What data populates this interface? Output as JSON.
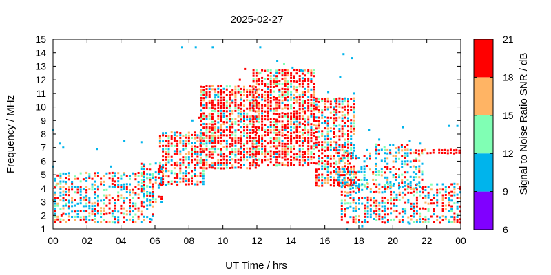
{
  "chart_data": {
    "type": "scatter",
    "title": "2025-02-27",
    "xlabel": "UT Time / hrs",
    "ylabel": "Frequency / MHz",
    "xlim": [
      0,
      24
    ],
    "ylim": [
      1,
      15
    ],
    "x_ticks": [
      "00",
      "02",
      "04",
      "06",
      "08",
      "10",
      "12",
      "14",
      "16",
      "18",
      "20",
      "22",
      "00"
    ],
    "y_ticks": [
      "1",
      "2",
      "3",
      "4",
      "5",
      "6",
      "7",
      "8",
      "9",
      "10",
      "11",
      "12",
      "13",
      "14",
      "15"
    ],
    "grid": false,
    "colorbar": {
      "label": "Signal to Noise Ratio SNR / dB",
      "range": [
        6,
        21
      ],
      "ticks": [
        "6",
        "9",
        "12",
        "15",
        "18",
        "21"
      ],
      "bands": [
        {
          "min": 6,
          "max": 9,
          "color": "#8000ff"
        },
        {
          "min": 9,
          "max": 12,
          "color": "#00b4ec"
        },
        {
          "min": 12,
          "max": 15,
          "color": "#80ffb4"
        },
        {
          "min": 15,
          "max": 18,
          "color": "#ffb464"
        },
        {
          "min": 18,
          "max": 21,
          "color": "#ff0000"
        }
      ]
    },
    "points": [
      [
        0.0,
        8.3,
        10
      ],
      [
        0.0,
        5.6,
        10
      ],
      [
        0.0,
        3.1,
        16
      ],
      [
        0.1,
        2.5,
        10
      ],
      [
        0.4,
        7.3,
        10
      ],
      [
        0.6,
        7.0,
        10
      ],
      [
        0.2,
        4.2,
        13
      ],
      [
        0.5,
        2.0,
        19
      ],
      [
        2.6,
        6.9,
        10
      ],
      [
        3.4,
        5.6,
        10
      ],
      [
        4.2,
        7.5,
        10
      ],
      [
        4.2,
        5.0,
        10
      ],
      [
        5.2,
        7.4,
        10
      ],
      [
        5.8,
        1.7,
        10
      ],
      [
        7.6,
        14.4,
        10
      ],
      [
        8.4,
        14.4,
        10
      ],
      [
        9.4,
        14.4,
        10
      ],
      [
        12.2,
        14.4,
        10
      ],
      [
        17.1,
        13.9,
        10
      ],
      [
        17.6,
        13.6,
        10
      ],
      [
        17.7,
        11.0,
        10
      ],
      [
        16.9,
        12.2,
        10
      ],
      [
        18.6,
        8.3,
        10
      ],
      [
        19.2,
        7.6,
        10
      ],
      [
        20.6,
        8.5,
        10
      ],
      [
        23.3,
        8.6,
        10
      ],
      [
        23.8,
        8.6,
        10
      ],
      [
        21.0,
        7.5,
        10
      ],
      [
        21.6,
        7.3,
        10
      ],
      [
        21.0,
        1.4,
        10
      ],
      [
        18.2,
        1.2,
        10
      ],
      [
        17.3,
        1.0,
        10
      ],
      [
        11.3,
        12.8,
        19
      ],
      [
        11.0,
        12.0,
        19
      ],
      [
        12.2,
        12.5,
        13
      ],
      [
        13.2,
        13.4,
        10
      ],
      [
        13.6,
        13.2,
        13
      ],
      [
        14.1,
        12.9,
        10
      ],
      [
        14.6,
        12.7,
        10
      ],
      [
        15.2,
        11.9,
        19
      ],
      [
        16.2,
        11.1,
        10
      ],
      [
        16.6,
        10.4,
        10
      ],
      [
        9.0,
        10.7,
        10
      ],
      [
        9.6,
        10.9,
        10
      ],
      [
        8.6,
        9.2,
        19
      ],
      [
        8.2,
        9.0,
        10
      ]
    ],
    "regions": [
      {
        "t0": 0.1,
        "t1": 6.0,
        "f0": 1.5,
        "f1": 5.2,
        "hot": 0.35,
        "dens": 0.55
      },
      {
        "t0": 5.2,
        "t1": 6.5,
        "f0": 3.0,
        "f1": 6.0,
        "hot": 0.3,
        "dens": 0.5
      },
      {
        "t0": 6.3,
        "t1": 9.0,
        "f0": 4.3,
        "f1": 8.3,
        "hot": 0.55,
        "dens": 0.75
      },
      {
        "t0": 8.7,
        "t1": 12.0,
        "f0": 5.5,
        "f1": 11.5,
        "hot": 0.6,
        "dens": 0.8
      },
      {
        "t0": 11.8,
        "t1": 15.5,
        "f0": 5.7,
        "f1": 12.8,
        "hot": 0.65,
        "dens": 0.8
      },
      {
        "t0": 15.5,
        "t1": 17.8,
        "f0": 4.2,
        "f1": 10.7,
        "hot": 0.55,
        "dens": 0.75
      },
      {
        "t0": 16.8,
        "t1": 21.8,
        "f0": 4.0,
        "f1": 7.0,
        "hot": 0.2,
        "dens": 0.45
      },
      {
        "t0": 17.0,
        "t1": 24.0,
        "f0": 1.5,
        "f1": 4.5,
        "hot": 0.4,
        "dens": 0.6
      },
      {
        "t0": 21.2,
        "t1": 24.0,
        "f0": 6.6,
        "f1": 6.9,
        "hot": 0.95,
        "dens": 0.9
      },
      {
        "t0": 19.0,
        "t1": 21.0,
        "f0": 6.6,
        "f1": 7.2,
        "hot": 0.3,
        "dens": 0.5
      }
    ]
  }
}
